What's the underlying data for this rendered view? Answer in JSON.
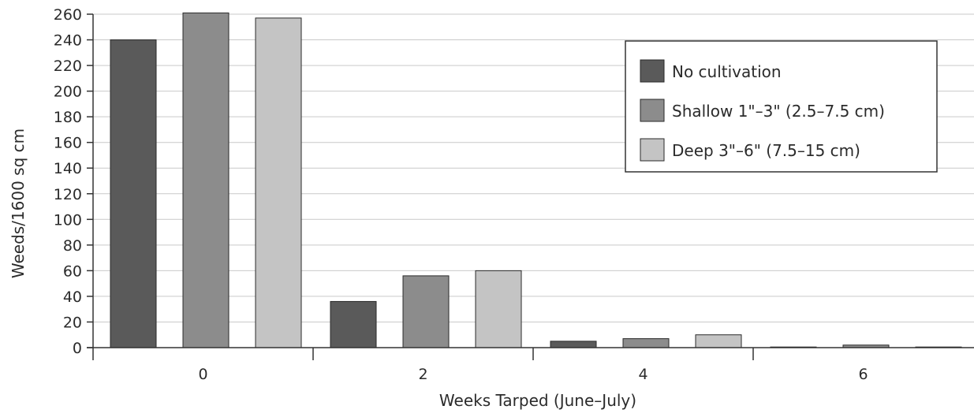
{
  "chart_data": {
    "type": "bar",
    "title": "",
    "xlabel": "Weeks Tarped (June–July)",
    "ylabel": "Weeds/1600 sq cm",
    "ylim": [
      0,
      260
    ],
    "yticks": [
      0,
      20,
      40,
      60,
      80,
      100,
      120,
      140,
      160,
      180,
      200,
      220,
      240,
      260
    ],
    "categories": [
      "0",
      "2",
      "4",
      "6"
    ],
    "series": [
      {
        "name": "No cultivation",
        "color": "#5a5a5a",
        "values": [
          240,
          36,
          5,
          0.5
        ]
      },
      {
        "name": "Shallow 1\"–3\" (2.5–7.5 cm)",
        "color": "#8c8c8c",
        "values": [
          261,
          56,
          7,
          2
        ]
      },
      {
        "name": "Deep 3\"–6\" (7.5–15 cm)",
        "color": "#c4c4c4",
        "values": [
          257,
          60,
          10,
          0.5
        ]
      }
    ],
    "legend_position": "top-right",
    "grid": true
  }
}
